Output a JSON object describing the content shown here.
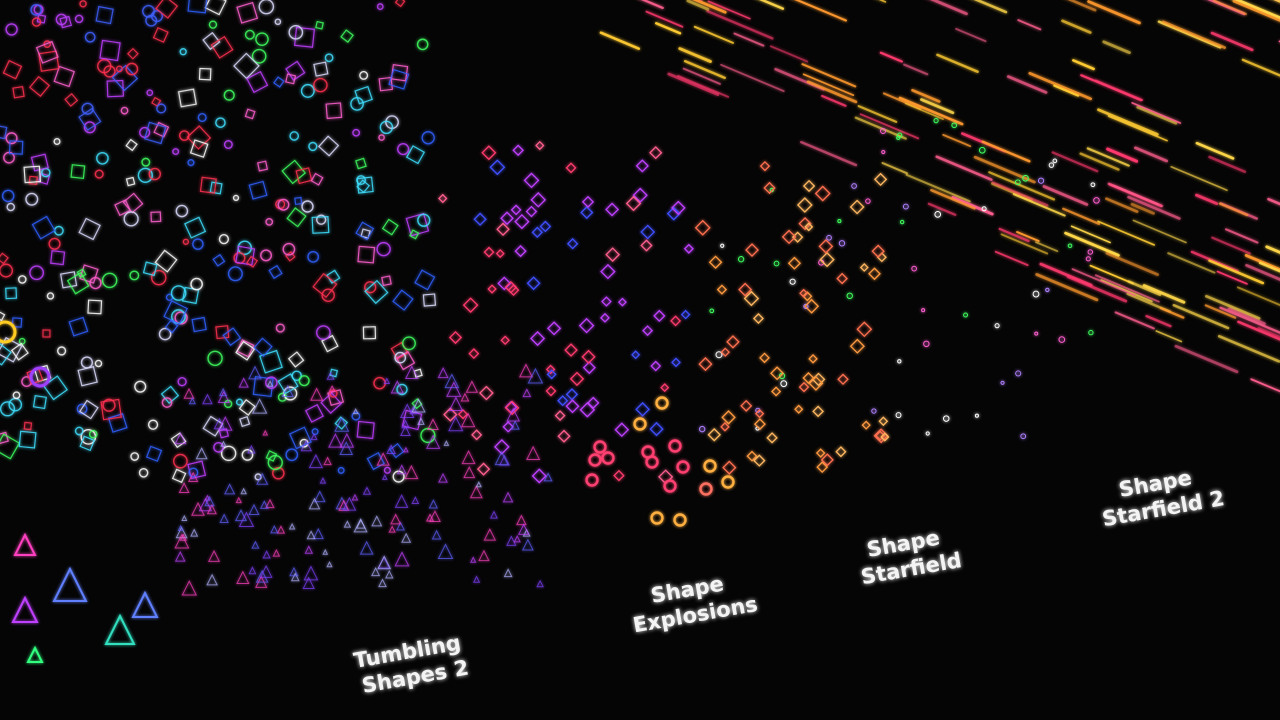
{
  "labels": [
    {
      "lines": [
        "Tumbling",
        "Shapes 2"
      ]
    },
    {
      "lines": [
        "Shape",
        "Explosions"
      ]
    },
    {
      "lines": [
        "Shape",
        "Starfield"
      ]
    },
    {
      "lines": [
        "Shape",
        "Starfield 2"
      ]
    }
  ]
}
